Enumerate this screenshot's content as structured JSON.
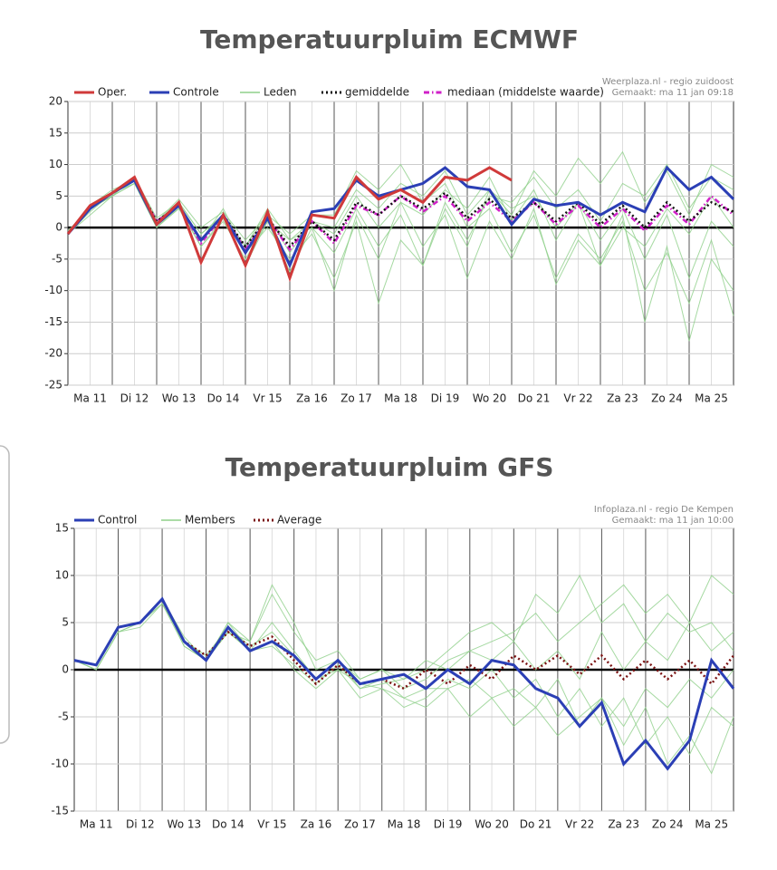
{
  "chart_data": [
    {
      "type": "line",
      "title": "Temperatuurpluim ECMWF",
      "credits": [
        "Weerplaza.nl - regio zuidoost",
        "Gemaakt: ma 11 jan 09:18"
      ],
      "categories": [
        null,
        "Ma 11",
        null,
        "Di 12",
        null,
        "Wo 13",
        null,
        "Do 14",
        null,
        "Vr 15",
        null,
        "Za 16",
        null,
        "Zo 17",
        null,
        "Ma 18",
        null,
        "Di 19",
        null,
        "Wo 20",
        null,
        "Do 21",
        null,
        "Vr 22",
        null,
        "Za 23",
        null,
        "Zo 24",
        null,
        "Ma 25",
        null
      ],
      "ylim": [
        -25,
        20
      ],
      "yticks": [
        20,
        15,
        10,
        5,
        0,
        -5,
        -10,
        -15,
        -20,
        -25
      ],
      "grid": true,
      "series": [
        {
          "name": "Oper.",
          "color": "#d03a3a",
          "dash": "solid",
          "values": [
            -1,
            3.5,
            5.5,
            8,
            0.5,
            4,
            -5.5,
            2,
            -6,
            2.5,
            -8,
            2,
            1.5,
            8,
            4.5,
            6,
            4,
            8,
            7.5,
            9.5,
            7.5,
            null,
            null,
            null,
            null,
            null,
            null,
            null,
            null,
            null,
            null
          ]
        },
        {
          "name": "Controle",
          "color": "#2b3fb5",
          "dash": "solid",
          "values": [
            -1,
            3,
            5.5,
            7.5,
            0.5,
            3.5,
            -2,
            2,
            -4,
            1.5,
            -6,
            2.5,
            3,
            7.5,
            5,
            6,
            7,
            9.5,
            6.5,
            6,
            0.5,
            4.5,
            3.5,
            4,
            2,
            4,
            2.5,
            9.5,
            6,
            8,
            4.5
          ]
        },
        {
          "name": "Leden",
          "color": "#8fd08a",
          "dash": "solid",
          "members": [
            [
              -1,
              3,
              5,
              7,
              1,
              4,
              -1,
              2,
              -3,
              2,
              -4,
              1,
              0,
              6,
              3,
              7,
              5,
              9,
              2,
              6,
              3,
              5,
              0,
              4,
              -2,
              3,
              -5,
              2,
              -8,
              1,
              -3
            ],
            [
              -1,
              2.5,
              5.5,
              7,
              0,
              3,
              -3,
              1,
              -5,
              1,
              -2,
              0,
              -4,
              3,
              -3,
              2,
              -6,
              4,
              -2,
              5,
              4,
              8,
              3,
              6,
              1,
              7,
              5,
              10,
              3,
              8,
              6
            ],
            [
              -0.5,
              3,
              5,
              8,
              1,
              4.5,
              0,
              2.5,
              -2,
              2,
              -1,
              2,
              2,
              9,
              6,
              10,
              4,
              7,
              0,
              3,
              -4,
              2,
              -8,
              -1,
              -5,
              1,
              -10,
              -4,
              -12,
              -2,
              -14
            ],
            [
              -1,
              3.5,
              6,
              7.5,
              0.5,
              3,
              -2,
              3,
              -4,
              0,
              -5,
              -1,
              -8,
              1,
              -12,
              -2,
              -6,
              3,
              -3,
              6,
              2,
              9,
              5,
              11,
              7,
              12,
              4,
              9,
              2,
              10,
              8
            ],
            [
              -1,
              3,
              5,
              8,
              1.5,
              4,
              -1,
              2,
              -3,
              3,
              -2,
              1,
              -1,
              5,
              0,
              4,
              2,
              6,
              3,
              8,
              1,
              6,
              -2,
              4,
              -6,
              0,
              -3,
              3,
              -1,
              5,
              0
            ],
            [
              -1,
              2,
              5,
              7,
              0,
              3.5,
              -3,
              1.5,
              -6,
              1,
              -7,
              0,
              -10,
              2,
              -5,
              4,
              -3,
              2,
              -8,
              1,
              -5,
              3,
              -9,
              -2,
              -6,
              2,
              -15,
              -3,
              -18,
              -5,
              -10
            ]
          ]
        },
        {
          "name": "gemiddelde",
          "color": "#111111",
          "dash": "dot",
          "values": [
            -1,
            3,
            5.5,
            7.5,
            1,
            3.5,
            -2,
            2,
            -3,
            1.5,
            -3,
            1,
            -2,
            4,
            2,
            5,
            3,
            5.5,
            1.5,
            4.5,
            1.5,
            4,
            1,
            4,
            0.5,
            3.5,
            0,
            4,
            1,
            4,
            2.5
          ]
        },
        {
          "name": "mediaan (middelste waarde)",
          "color": "#d020c8",
          "dash": "dashdot",
          "values": [
            -1,
            3,
            5.5,
            7.5,
            1,
            3.5,
            -2.5,
            2,
            -3.5,
            1.5,
            -3.5,
            1,
            -2.5,
            3.5,
            2,
            5,
            2.5,
            5,
            1,
            4,
            1,
            4,
            0.5,
            3.5,
            0,
            3,
            -0.5,
            3.5,
            0.5,
            5,
            2
          ]
        }
      ]
    },
    {
      "type": "line",
      "title": "Temperatuurpluim GFS",
      "credits": [
        "Infoplaza.nl - regio De Kempen",
        "Gemaakt: ma 11 jan 10:00"
      ],
      "categories": [
        null,
        "Ma 11",
        null,
        "Di 12",
        null,
        "Wo 13",
        null,
        "Do 14",
        null,
        "Vr 15",
        null,
        "Za 16",
        null,
        "Zo 17",
        null,
        "Ma 18",
        null,
        "Di 19",
        null,
        "Wo 20",
        null,
        "Do 21",
        null,
        "Vr 22",
        null,
        "Za 23",
        null,
        "Zo 24",
        null,
        "Ma 25",
        null
      ],
      "ylim": [
        -15,
        15
      ],
      "yticks": [
        15,
        10,
        5,
        0,
        -5,
        -10,
        -15
      ],
      "grid": true,
      "series": [
        {
          "name": "Control",
          "color": "#2b3fb5",
          "dash": "solid",
          "values": [
            1,
            0.5,
            4.5,
            5,
            7.5,
            3,
            1,
            4.5,
            2,
            3,
            1.5,
            -1,
            1,
            -1.5,
            -1,
            -0.5,
            -2,
            0,
            -1.5,
            1,
            0.5,
            -2,
            -3,
            -6,
            -3.5,
            -10,
            -7.5,
            -10.5,
            -7.5,
            1,
            -2
          ]
        },
        {
          "name": "Members",
          "color": "#8fd08a",
          "dash": "solid",
          "members": [
            [
              1,
              0,
              4,
              5,
              7,
              3,
              1,
              5,
              3,
              8,
              4,
              1,
              2,
              -1,
              0,
              -2,
              -1,
              1,
              2,
              3,
              4,
              6,
              3,
              5,
              7,
              9,
              6,
              8,
              5,
              10,
              8
            ],
            [
              1,
              0.5,
              4.5,
              5,
              7.5,
              2.5,
              1,
              4,
              2,
              3,
              0,
              -2,
              0,
              -3,
              -2,
              -4,
              -3,
              -1,
              -2,
              0,
              -3,
              -1,
              -5,
              -2,
              -6,
              -3,
              -8,
              -5,
              -9,
              -4,
              -6
            ],
            [
              1,
              0,
              4,
              4.5,
              7,
              3,
              1.5,
              4.5,
              2.5,
              4,
              1.5,
              -1,
              1,
              -1,
              0,
              -1,
              1,
              0,
              2,
              1,
              3,
              0,
              2,
              -1,
              4,
              0,
              3,
              1,
              5,
              2,
              4
            ],
            [
              1,
              0.5,
              4.5,
              5,
              7.5,
              3.5,
              1,
              4,
              3,
              9,
              5,
              0,
              1,
              -2,
              -1,
              -3,
              -2,
              -2,
              -1,
              -3,
              -2,
              -4,
              -1,
              -6,
              -3,
              -8,
              -4,
              -10,
              -7,
              -11,
              -5
            ],
            [
              1,
              0,
              4,
              5,
              7,
              2.5,
              1,
              5,
              2,
              2.5,
              0.5,
              -1.5,
              0.5,
              -2,
              -1.5,
              -1,
              0,
              2,
              4,
              5,
              3,
              8,
              6,
              10,
              5,
              7,
              3,
              6,
              4,
              5,
              2
            ],
            [
              1,
              0.5,
              4.5,
              5,
              7.5,
              3,
              1.5,
              4,
              2,
              5,
              2,
              -1,
              0,
              -1.5,
              -2,
              -3,
              -4,
              -2,
              -5,
              -3,
              -6,
              -4,
              -7,
              -5,
              -3,
              -6,
              -2,
              -4,
              -1,
              -3,
              0
            ]
          ]
        },
        {
          "name": "Average",
          "color": "#7a1010",
          "dash": "dot",
          "values": [
            1,
            0.5,
            4.5,
            5,
            7.5,
            3,
            1.5,
            4,
            2.5,
            3.5,
            1,
            -1.5,
            0.5,
            -1.5,
            -1,
            -2,
            0,
            -1.5,
            0.5,
            -1,
            1.5,
            0,
            1.5,
            -0.5,
            1.5,
            -1,
            1,
            -1,
            1,
            -1.5,
            1.5
          ]
        }
      ]
    }
  ]
}
